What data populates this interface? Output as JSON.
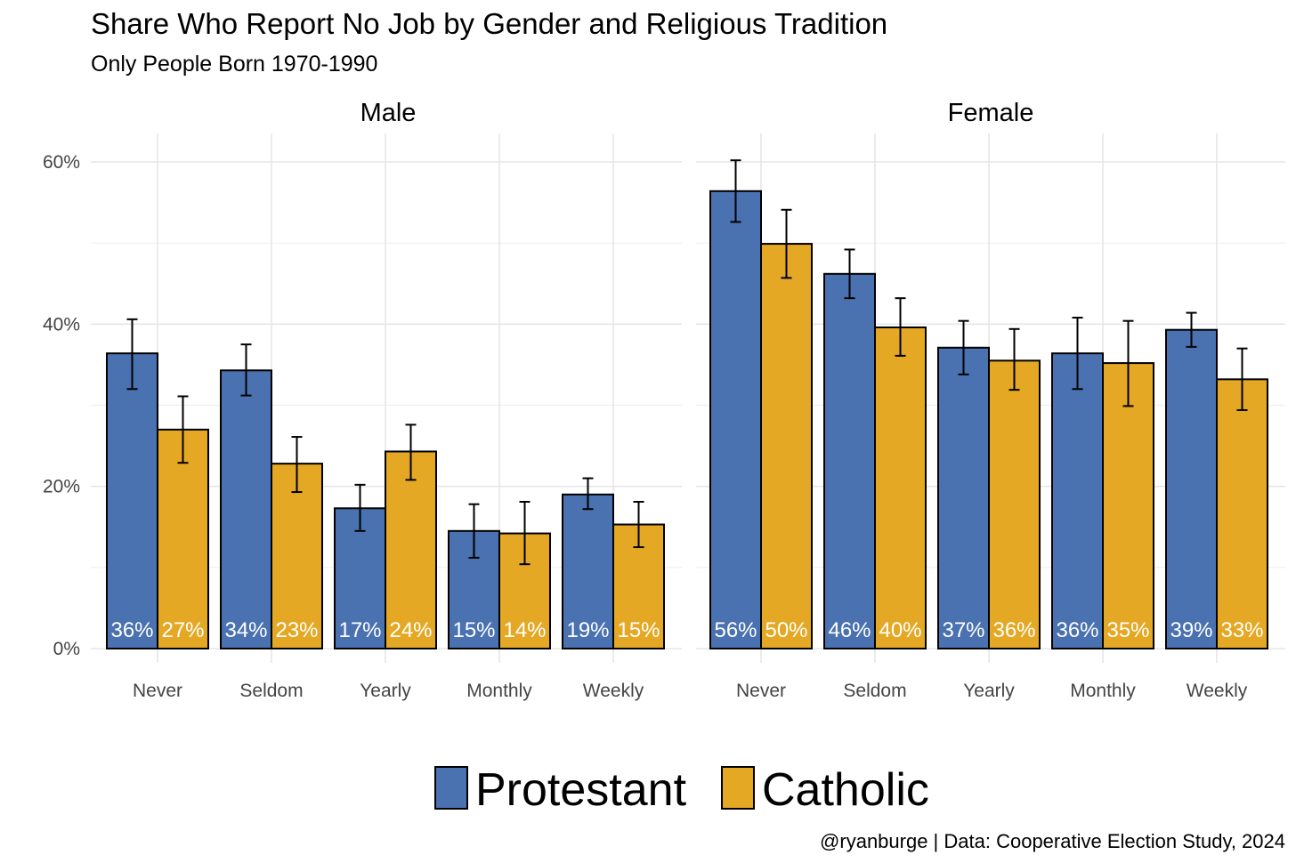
{
  "chart_data": {
    "type": "bar",
    "title": "Share Who Report No Job by Gender and Religious Tradition",
    "subtitle": "Only People Born 1970-1990",
    "caption": "@ryanburge | Data: Cooperative Election Study, 2024",
    "ylim": [
      0,
      0.6
    ],
    "yticks": [
      0,
      0.2,
      0.4,
      0.6
    ],
    "ytick_labels": [
      "0%",
      "20%",
      "40%",
      "60%"
    ],
    "categories": [
      "Never",
      "Seldom",
      "Yearly",
      "Monthly",
      "Weekly"
    ],
    "legend_position": "bottom",
    "colors": {
      "Protestant": "#4a71b0",
      "Catholic": "#e4a824"
    },
    "facets": [
      {
        "name": "Male",
        "series": [
          {
            "name": "Protestant",
            "values": [
              0.364,
              0.343,
              0.173,
              0.145,
              0.19
            ],
            "ci_low": [
              0.32,
              0.312,
              0.145,
              0.112,
              0.172
            ],
            "ci_high": [
              0.406,
              0.375,
              0.202,
              0.178,
              0.21
            ],
            "labels": [
              "36%",
              "34%",
              "17%",
              "15%",
              "19%"
            ]
          },
          {
            "name": "Catholic",
            "values": [
              0.27,
              0.228,
              0.243,
              0.142,
              0.153
            ],
            "ci_low": [
              0.229,
              0.193,
              0.208,
              0.104,
              0.125
            ],
            "ci_high": [
              0.311,
              0.261,
              0.276,
              0.181,
              0.181
            ],
            "labels": [
              "27%",
              "23%",
              "24%",
              "14%",
              "15%"
            ]
          }
        ]
      },
      {
        "name": "Female",
        "series": [
          {
            "name": "Protestant",
            "values": [
              0.564,
              0.462,
              0.371,
              0.364,
              0.393
            ],
            "ci_low": [
              0.526,
              0.432,
              0.338,
              0.32,
              0.372
            ],
            "ci_high": [
              0.602,
              0.492,
              0.404,
              0.408,
              0.414
            ],
            "labels": [
              "56%",
              "46%",
              "37%",
              "36%",
              "39%"
            ]
          },
          {
            "name": "Catholic",
            "values": [
              0.499,
              0.396,
              0.355,
              0.352,
              0.332
            ],
            "ci_low": [
              0.457,
              0.361,
              0.319,
              0.299,
              0.294
            ],
            "ci_high": [
              0.541,
              0.432,
              0.394,
              0.404,
              0.37
            ],
            "labels": [
              "50%",
              "40%",
              "36%",
              "35%",
              "33%"
            ]
          }
        ]
      }
    ]
  }
}
